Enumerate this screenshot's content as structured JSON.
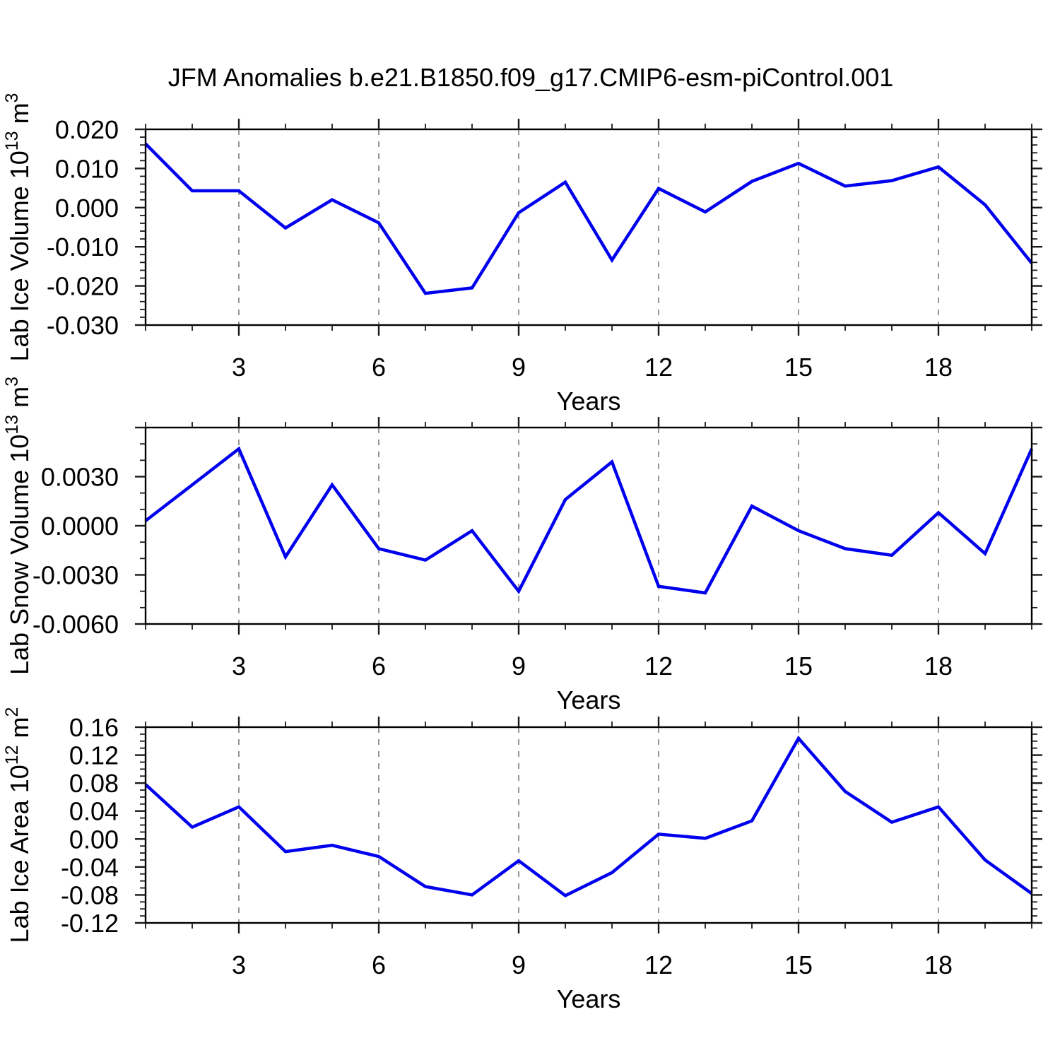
{
  "title": "JFM Anomalies b.e21.B1850.f09_g17.CMIP6-esm-piControl.001",
  "colors": {
    "series_line": "#0000ee",
    "grid_line": "#8a8a8a",
    "frame": "#000000",
    "tick": "#1a1a1a",
    "text": "#000000",
    "background": "#ffffff"
  },
  "chart_data": [
    {
      "type": "line",
      "panel_id": "ice-volume",
      "ylabel": "Lab Ice Volume 10^13 m^3",
      "ylabel_parts": [
        [
          "Lab Ice Volume 10",
          0
        ],
        [
          "13",
          1
        ],
        [
          " m",
          0
        ],
        [
          "3",
          1
        ]
      ],
      "xlabel": "Years",
      "x": [
        1,
        2,
        3,
        4,
        5,
        6,
        7,
        8,
        9,
        10,
        11,
        12,
        13,
        14,
        15,
        16,
        17,
        18,
        19,
        20
      ],
      "values": [
        0.0163,
        0.0043,
        0.0043,
        -0.0052,
        0.002,
        -0.0039,
        -0.0219,
        -0.0205,
        -0.0013,
        0.0065,
        -0.0134,
        0.0049,
        -0.0011,
        0.0067,
        0.0113,
        0.0055,
        0.0069,
        0.0104,
        0.0007,
        -0.0142
      ],
      "xlim": [
        1,
        20
      ],
      "ylim": [
        -0.03,
        0.02
      ],
      "yticks": [
        {
          "v": 0.02,
          "label": "0.020"
        },
        {
          "v": 0.01,
          "label": "0.010"
        },
        {
          "v": 0.0,
          "label": "0.000"
        },
        {
          "v": -0.01,
          "label": "-0.010"
        },
        {
          "v": -0.02,
          "label": "-0.020"
        },
        {
          "v": -0.03,
          "label": "-0.030"
        }
      ],
      "yminor_step": 0.002,
      "xticks_major": [
        3,
        6,
        9,
        12,
        15,
        18
      ],
      "xminor_step": 1,
      "grid_years": [
        3,
        6,
        9,
        12,
        15,
        18
      ],
      "grid": "vertical-dashed"
    },
    {
      "type": "line",
      "panel_id": "snow-volume",
      "ylabel": "Lab Snow Volume 10^13 m^3",
      "ylabel_parts": [
        [
          "Lab Snow Volume 10",
          0
        ],
        [
          "13",
          1
        ],
        [
          " m",
          0
        ],
        [
          "3",
          1
        ]
      ],
      "xlabel": "Years",
      "x": [
        1,
        2,
        3,
        4,
        5,
        6,
        7,
        8,
        9,
        10,
        11,
        12,
        13,
        14,
        15,
        16,
        17,
        18,
        19,
        20
      ],
      "values": [
        0.0003,
        0.0025,
        0.0047,
        -0.0019,
        0.0025,
        -0.0014,
        -0.0021,
        -0.0003,
        -0.004,
        0.0016,
        0.0039,
        -0.0037,
        -0.0041,
        0.0012,
        -0.0003,
        -0.0014,
        -0.0018,
        0.0008,
        -0.0017,
        0.0047
      ],
      "xlim": [
        1,
        20
      ],
      "ylim": [
        -0.006,
        0.006
      ],
      "yticks": [
        {
          "v": 0.006,
          "label": ""
        },
        {
          "v": 0.003,
          "label": "0.0030"
        },
        {
          "v": 0.0,
          "label": "0.0000"
        },
        {
          "v": -0.003,
          "label": "-0.0030"
        },
        {
          "v": -0.006,
          "label": "-0.0060"
        }
      ],
      "yminor_step": 0.001,
      "xticks_major": [
        3,
        6,
        9,
        12,
        15,
        18
      ],
      "xminor_step": 1,
      "grid_years": [
        3,
        6,
        9,
        12,
        15,
        18
      ],
      "grid": "vertical-dashed"
    },
    {
      "type": "line",
      "panel_id": "ice-area",
      "ylabel": "Lab Ice Area 10^12 m^2",
      "ylabel_parts": [
        [
          "Lab Ice Area 10",
          0
        ],
        [
          "12",
          1
        ],
        [
          " m",
          0
        ],
        [
          "2",
          1
        ]
      ],
      "xlabel": "Years",
      "x": [
        1,
        2,
        3,
        4,
        5,
        6,
        7,
        8,
        9,
        10,
        11,
        12,
        13,
        14,
        15,
        16,
        17,
        18,
        19,
        20
      ],
      "values": [
        0.078,
        0.017,
        0.046,
        -0.018,
        -0.009,
        -0.025,
        -0.068,
        -0.08,
        -0.031,
        -0.081,
        -0.048,
        0.007,
        0.001,
        0.026,
        0.144,
        0.068,
        0.024,
        0.046,
        -0.03,
        -0.078
      ],
      "xlim": [
        1,
        20
      ],
      "ylim": [
        -0.12,
        0.16
      ],
      "yticks": [
        {
          "v": 0.16,
          "label": "0.16"
        },
        {
          "v": 0.12,
          "label": "0.12"
        },
        {
          "v": 0.08,
          "label": "0.08"
        },
        {
          "v": 0.04,
          "label": "0.04"
        },
        {
          "v": 0.0,
          "label": "0.00"
        },
        {
          "v": -0.04,
          "label": "-0.04"
        },
        {
          "v": -0.08,
          "label": "-0.08"
        },
        {
          "v": -0.12,
          "label": "-0.12"
        }
      ],
      "yminor_step": 0.01,
      "xticks_major": [
        3,
        6,
        9,
        12,
        15,
        18
      ],
      "xminor_step": 1,
      "grid_years": [
        3,
        6,
        9,
        12,
        15,
        18
      ],
      "grid": "vertical-dashed"
    }
  ]
}
